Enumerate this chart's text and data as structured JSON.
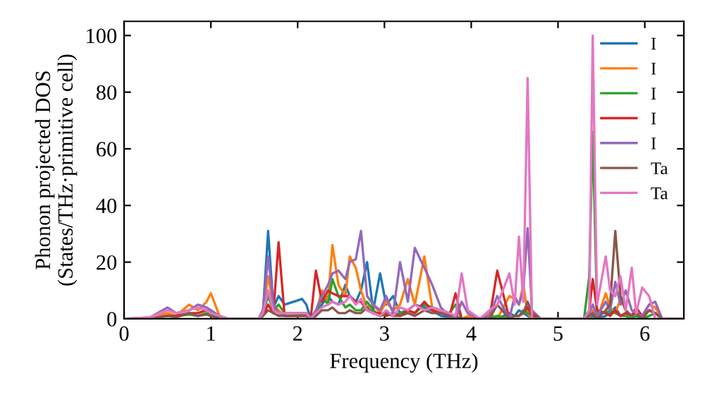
{
  "chart_data": {
    "type": "line",
    "xlabel": "Frequency (THz)",
    "ylabel": "Phonon projected DOS\n(States/THz·primitive cell)",
    "x": [
      0,
      0.3,
      0.5,
      0.6,
      0.75,
      0.85,
      0.95,
      1.0,
      1.1,
      1.2,
      1.3,
      1.55,
      1.6,
      1.66,
      1.72,
      1.78,
      1.85,
      1.95,
      2.05,
      2.1,
      2.15,
      2.21,
      2.28,
      2.35,
      2.4,
      2.47,
      2.55,
      2.6,
      2.67,
      2.73,
      2.8,
      2.87,
      2.95,
      3.02,
      3.1,
      3.18,
      3.27,
      3.35,
      3.46,
      3.55,
      3.65,
      3.75,
      3.82,
      3.89,
      3.96,
      4.1,
      4.21,
      4.3,
      4.44,
      4.5,
      4.55,
      4.6,
      4.65,
      4.7,
      4.8,
      5.3,
      5.36,
      5.4,
      5.45,
      5.55,
      5.6,
      5.66,
      5.72,
      5.78,
      5.85,
      5.9,
      5.97,
      6.05,
      6.12,
      6.2,
      6.45
    ],
    "series": [
      {
        "name": "I",
        "color": "#1f77b4",
        "values": [
          null,
          null,
          null,
          null,
          null,
          null,
          null,
          null,
          null,
          null,
          null,
          0,
          2,
          31,
          4,
          8,
          5,
          6,
          7,
          5,
          0,
          1,
          5,
          8,
          6,
          5,
          12,
          8,
          6,
          10,
          20,
          3,
          16,
          5,
          8,
          2,
          3,
          5,
          4,
          3,
          1,
          0.5,
          0,
          0,
          0,
          0,
          1,
          0,
          2,
          1,
          3,
          2,
          1,
          0,
          0,
          0,
          0,
          1,
          0,
          1,
          2,
          4,
          1,
          2,
          1,
          null,
          null,
          null,
          null,
          null,
          null
        ]
      },
      {
        "name": "I",
        "color": "#ff7f0e",
        "values": [
          0,
          0,
          2,
          1,
          5,
          3,
          6,
          9,
          1,
          0,
          0,
          0,
          3,
          15,
          5,
          3,
          1,
          1,
          2,
          1,
          0,
          2,
          10,
          6,
          26,
          12,
          8,
          22,
          18,
          10,
          4,
          5,
          2,
          6,
          3,
          5,
          14,
          5,
          22,
          4,
          3,
          1,
          0,
          0,
          1,
          0,
          2,
          0,
          8,
          7,
          5,
          12,
          2,
          0,
          0,
          0,
          0,
          3,
          0,
          9,
          4,
          2,
          7,
          3,
          1,
          2,
          1,
          5,
          4,
          0,
          0
        ]
      },
      {
        "name": "I",
        "color": "#2ca02c",
        "values": [
          null,
          null,
          1,
          1,
          1.5,
          1,
          2,
          1.5,
          0.5,
          0,
          0,
          0,
          2,
          8,
          3,
          5,
          2,
          2,
          2,
          2,
          0,
          1,
          8,
          5,
          14,
          8,
          4,
          5,
          3,
          3,
          6,
          3,
          1,
          2,
          1,
          2,
          3,
          2,
          5,
          4,
          3,
          2,
          5,
          0,
          0,
          0,
          0,
          1,
          0,
          1,
          1,
          3,
          2,
          1,
          0,
          0,
          15,
          66,
          2,
          2,
          3,
          2,
          1,
          1,
          0,
          1,
          0,
          1,
          2,
          0,
          0
        ]
      },
      {
        "name": "I",
        "color": "#d62728",
        "values": [
          0,
          0,
          1,
          1,
          2,
          2,
          3,
          3,
          0.5,
          0,
          0,
          0,
          1,
          5,
          2,
          27,
          1,
          1,
          1,
          1,
          0,
          17,
          6,
          10,
          9,
          8,
          8,
          8,
          6,
          6,
          3,
          2,
          2,
          1,
          2,
          1,
          3,
          2,
          6,
          3,
          2,
          1,
          9,
          0,
          0,
          0,
          0,
          17,
          0,
          1,
          1,
          2,
          4,
          1,
          0,
          0,
          3,
          14,
          3,
          2,
          1,
          3,
          1,
          2,
          1,
          4,
          1,
          3,
          2,
          0,
          0
        ]
      },
      {
        "name": "I",
        "color": "#9467bd",
        "values": [
          0,
          0.5,
          4,
          2,
          3,
          5,
          4,
          3,
          1,
          0,
          0,
          0,
          3,
          22,
          5,
          2,
          1,
          1,
          1,
          1,
          0,
          3,
          8,
          12,
          16,
          17,
          14,
          20,
          21,
          31,
          8,
          5,
          3,
          8,
          2,
          20,
          6,
          25,
          18,
          12,
          4,
          1,
          0,
          6,
          2,
          0,
          1,
          8,
          0,
          8,
          5,
          10,
          32,
          3,
          0,
          0,
          2,
          5,
          1,
          6,
          3,
          13,
          5,
          10,
          3,
          2,
          1,
          5,
          6,
          0,
          0
        ]
      },
      {
        "name": "Ta",
        "color": "#8c564b",
        "values": [
          0,
          0,
          1,
          0.5,
          2,
          1,
          1.5,
          1,
          0,
          0,
          0,
          0,
          1,
          3,
          2,
          1,
          1,
          1,
          1,
          1,
          0,
          1,
          3,
          3,
          4,
          2,
          2,
          3,
          2,
          2,
          4,
          2,
          1,
          2,
          1,
          1,
          2,
          1,
          3,
          2,
          2,
          1,
          1,
          0,
          0,
          0,
          0,
          5,
          0,
          1,
          1,
          2,
          6,
          2,
          0,
          0,
          1,
          2,
          0,
          3,
          5,
          31,
          8,
          3,
          1,
          2,
          0,
          3,
          2,
          0,
          0
        ]
      },
      {
        "name": "Ta",
        "color": "#e377c2",
        "values": [
          0,
          0.5,
          3,
          2,
          3,
          4,
          3,
          2,
          1,
          0,
          0,
          0,
          2,
          10,
          3,
          2,
          2,
          2,
          2,
          2,
          0,
          2,
          4,
          5,
          6,
          5,
          6,
          8,
          5,
          7,
          3,
          2,
          1,
          3,
          1,
          4,
          3,
          5,
          3,
          4,
          3,
          2,
          1,
          16,
          3,
          0,
          3,
          5,
          16,
          5,
          29,
          6,
          85,
          0,
          0,
          0,
          3,
          100,
          5,
          22,
          10,
          8,
          15,
          3,
          18,
          2,
          11,
          8,
          0,
          0,
          0
        ]
      }
    ],
    "xlim": [
      0,
      6.45
    ],
    "ylim": [
      0,
      105
    ],
    "xticks": [
      0,
      1,
      2,
      3,
      4,
      5,
      6
    ],
    "yticks": [
      0,
      20,
      40,
      60,
      80,
      100
    ],
    "grid": false,
    "legend": "top right",
    "marker": "none",
    "line_style": "solid"
  }
}
